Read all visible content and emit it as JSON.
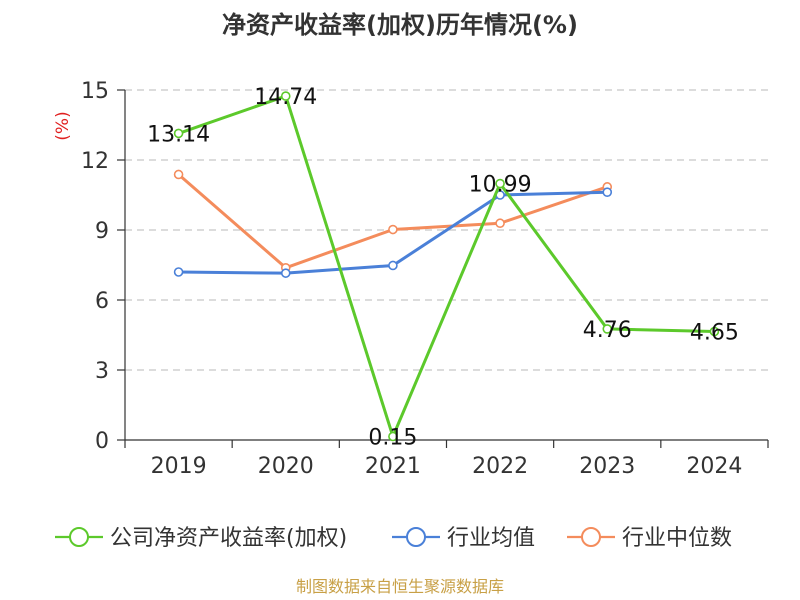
{
  "chart_data": {
    "type": "line",
    "title": "净资产收益率(加权)历年情况(%)",
    "ylabel": "(%)",
    "categories": [
      "2019",
      "2020",
      "2021",
      "2022",
      "2023",
      "2024"
    ],
    "ylim": [
      0,
      15
    ],
    "yticks": [
      "0",
      "3",
      "6",
      "9",
      "12",
      "15"
    ],
    "grid": true,
    "legend_position": "bottom",
    "series": [
      {
        "name": "公司净资产收益率(加权)",
        "color": "#5cc92b",
        "values": [
          13.14,
          14.74,
          0.15,
          10.99,
          4.76,
          4.65
        ],
        "labels": [
          "13.14",
          "14.74",
          "0.15",
          "10.99",
          "4.76",
          "4.65"
        ]
      },
      {
        "name": "行业均值",
        "color": "#4a80d8",
        "values": [
          7.2,
          7.15,
          7.48,
          10.5,
          10.62,
          null
        ]
      },
      {
        "name": "行业中位数",
        "color": "#f48c5c",
        "values": [
          11.38,
          7.38,
          9.02,
          9.29,
          10.85,
          null
        ]
      }
    ]
  },
  "source": "制图数据来自恒生聚源数据库"
}
